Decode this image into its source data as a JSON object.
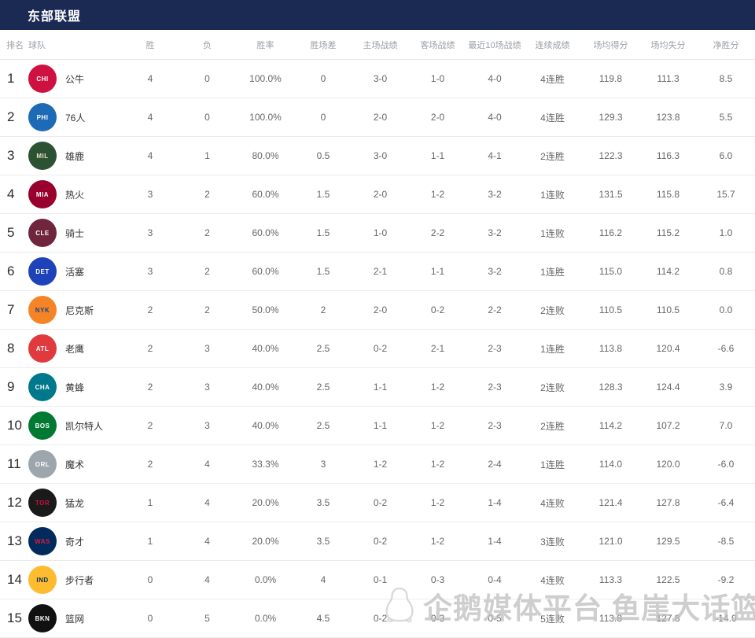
{
  "header": {
    "title": "东部联盟",
    "bg_color": "#1b2a52",
    "text_color": "#ffffff"
  },
  "columns": [
    {
      "key": "rank",
      "label": "排名"
    },
    {
      "key": "team",
      "label": "球队"
    },
    {
      "key": "wins",
      "label": "胜"
    },
    {
      "key": "losses",
      "label": "负"
    },
    {
      "key": "win_pct",
      "label": "胜率"
    },
    {
      "key": "gb",
      "label": "胜场差"
    },
    {
      "key": "home",
      "label": "主场战绩"
    },
    {
      "key": "away",
      "label": "客场战绩"
    },
    {
      "key": "last10",
      "label": "最近10场战绩"
    },
    {
      "key": "streak",
      "label": "连续成绩"
    },
    {
      "key": "ppg",
      "label": "场均得分"
    },
    {
      "key": "opp_ppg",
      "label": "场均失分"
    },
    {
      "key": "diff",
      "label": "净胜分"
    }
  ],
  "rows": [
    {
      "rank": "1",
      "team": "公牛",
      "logo": {
        "abbr": "CHI",
        "bg": "#ce1141",
        "fg": "#ffffff"
      },
      "wins": "4",
      "losses": "0",
      "win_pct": "100.0%",
      "gb": "0",
      "home": "3-0",
      "away": "1-0",
      "last10": "4-0",
      "streak": "4连胜",
      "ppg": "119.8",
      "opp_ppg": "111.3",
      "diff": "8.5"
    },
    {
      "rank": "2",
      "team": "76人",
      "logo": {
        "abbr": "PHI",
        "bg": "#1d6bb6",
        "fg": "#ffffff"
      },
      "wins": "4",
      "losses": "0",
      "win_pct": "100.0%",
      "gb": "0",
      "home": "2-0",
      "away": "2-0",
      "last10": "4-0",
      "streak": "4连胜",
      "ppg": "129.3",
      "opp_ppg": "123.8",
      "diff": "5.5"
    },
    {
      "rank": "3",
      "team": "雄鹿",
      "logo": {
        "abbr": "MIL",
        "bg": "#2c5234",
        "fg": "#eee1c6"
      },
      "wins": "4",
      "losses": "1",
      "win_pct": "80.0%",
      "gb": "0.5",
      "home": "3-0",
      "away": "1-1",
      "last10": "4-1",
      "streak": "2连胜",
      "ppg": "122.3",
      "opp_ppg": "116.3",
      "diff": "6.0"
    },
    {
      "rank": "4",
      "team": "热火",
      "logo": {
        "abbr": "MIA",
        "bg": "#98002e",
        "fg": "#ffffff"
      },
      "wins": "3",
      "losses": "2",
      "win_pct": "60.0%",
      "gb": "1.5",
      "home": "2-0",
      "away": "1-2",
      "last10": "3-2",
      "streak": "1连败",
      "ppg": "131.5",
      "opp_ppg": "115.8",
      "diff": "15.7"
    },
    {
      "rank": "5",
      "team": "骑士",
      "logo": {
        "abbr": "CLE",
        "bg": "#6f263d",
        "fg": "#ffffff"
      },
      "wins": "3",
      "losses": "2",
      "win_pct": "60.0%",
      "gb": "1.5",
      "home": "1-0",
      "away": "2-2",
      "last10": "3-2",
      "streak": "1连败",
      "ppg": "116.2",
      "opp_ppg": "115.2",
      "diff": "1.0"
    },
    {
      "rank": "6",
      "team": "活塞",
      "logo": {
        "abbr": "DET",
        "bg": "#1d42ba",
        "fg": "#ffffff"
      },
      "wins": "3",
      "losses": "2",
      "win_pct": "60.0%",
      "gb": "1.5",
      "home": "2-1",
      "away": "1-1",
      "last10": "3-2",
      "streak": "1连胜",
      "ppg": "115.0",
      "opp_ppg": "114.2",
      "diff": "0.8"
    },
    {
      "rank": "7",
      "team": "尼克斯",
      "logo": {
        "abbr": "NYK",
        "bg": "#f58426",
        "fg": "#1d428a"
      },
      "wins": "2",
      "losses": "2",
      "win_pct": "50.0%",
      "gb": "2",
      "home": "2-0",
      "away": "0-2",
      "last10": "2-2",
      "streak": "2连败",
      "ppg": "110.5",
      "opp_ppg": "110.5",
      "diff": "0.0"
    },
    {
      "rank": "8",
      "team": "老鹰",
      "logo": {
        "abbr": "ATL",
        "bg": "#e03a3e",
        "fg": "#ffffff"
      },
      "wins": "2",
      "losses": "3",
      "win_pct": "40.0%",
      "gb": "2.5",
      "home": "0-2",
      "away": "2-1",
      "last10": "2-3",
      "streak": "1连胜",
      "ppg": "113.8",
      "opp_ppg": "120.4",
      "diff": "-6.6"
    },
    {
      "rank": "9",
      "team": "黄蜂",
      "logo": {
        "abbr": "CHA",
        "bg": "#00788c",
        "fg": "#ffffff"
      },
      "wins": "2",
      "losses": "3",
      "win_pct": "40.0%",
      "gb": "2.5",
      "home": "1-1",
      "away": "1-2",
      "last10": "2-3",
      "streak": "2连败",
      "ppg": "128.3",
      "opp_ppg": "124.4",
      "diff": "3.9"
    },
    {
      "rank": "10",
      "team": "凯尔特人",
      "logo": {
        "abbr": "BOS",
        "bg": "#007a33",
        "fg": "#ffffff"
      },
      "wins": "2",
      "losses": "3",
      "win_pct": "40.0%",
      "gb": "2.5",
      "home": "1-1",
      "away": "1-2",
      "last10": "2-3",
      "streak": "2连胜",
      "ppg": "114.2",
      "opp_ppg": "107.2",
      "diff": "7.0"
    },
    {
      "rank": "11",
      "team": "魔术",
      "logo": {
        "abbr": "ORL",
        "bg": "#9ea6ad",
        "fg": "#ffffff"
      },
      "wins": "2",
      "losses": "4",
      "win_pct": "33.3%",
      "gb": "3",
      "home": "1-2",
      "away": "1-2",
      "last10": "2-4",
      "streak": "1连胜",
      "ppg": "114.0",
      "opp_ppg": "120.0",
      "diff": "-6.0"
    },
    {
      "rank": "12",
      "team": "猛龙",
      "logo": {
        "abbr": "TOR",
        "bg": "#1a1a1a",
        "fg": "#ce1141"
      },
      "wins": "1",
      "losses": "4",
      "win_pct": "20.0%",
      "gb": "3.5",
      "home": "0-2",
      "away": "1-2",
      "last10": "1-4",
      "streak": "4连败",
      "ppg": "121.4",
      "opp_ppg": "127.8",
      "diff": "-6.4"
    },
    {
      "rank": "13",
      "team": "奇才",
      "logo": {
        "abbr": "WAS",
        "bg": "#002b5c",
        "fg": "#e31837"
      },
      "wins": "1",
      "losses": "4",
      "win_pct": "20.0%",
      "gb": "3.5",
      "home": "0-2",
      "away": "1-2",
      "last10": "1-4",
      "streak": "3连败",
      "ppg": "121.0",
      "opp_ppg": "129.5",
      "diff": "-8.5"
    },
    {
      "rank": "14",
      "team": "步行者",
      "logo": {
        "abbr": "IND",
        "bg": "#fdbb30",
        "fg": "#002d62"
      },
      "wins": "0",
      "losses": "4",
      "win_pct": "0.0%",
      "gb": "4",
      "home": "0-1",
      "away": "0-3",
      "last10": "0-4",
      "streak": "4连败",
      "ppg": "113.3",
      "opp_ppg": "122.5",
      "diff": "-9.2"
    },
    {
      "rank": "15",
      "team": "篮网",
      "logo": {
        "abbr": "BKN",
        "bg": "#111111",
        "fg": "#ffffff"
      },
      "wins": "0",
      "losses": "5",
      "win_pct": "0.0%",
      "gb": "4.5",
      "home": "0-2",
      "away": "0-3",
      "last10": "0-5",
      "streak": "5连败",
      "ppg": "113.8",
      "opp_ppg": "127.8",
      "diff": "-14.0"
    }
  ],
  "watermark": {
    "text": "企鹅媒体平台 鱼崖大话篮球",
    "icon": "penguin-icon",
    "color": "#c9c9c9"
  }
}
